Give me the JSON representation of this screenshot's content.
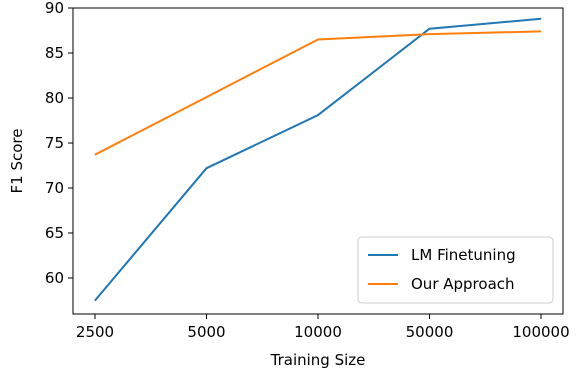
{
  "chart_data": {
    "type": "line",
    "categories": [
      "2500",
      "5000",
      "10000",
      "50000",
      "100000"
    ],
    "series": [
      {
        "name": "LM Finetuning",
        "values": [
          57.5,
          72.2,
          78.1,
          87.7,
          88.8
        ],
        "color": "#1f77b4"
      },
      {
        "name": "Our Approach",
        "values": [
          73.7,
          80.1,
          86.5,
          87.1,
          87.4
        ],
        "color": "#ff7f0e"
      }
    ],
    "xlabel": "Training Size",
    "ylabel": "F1 Score",
    "ylim": [
      56,
      90
    ],
    "yticks": [
      60,
      65,
      70,
      75,
      80,
      85,
      90
    ],
    "grid": false,
    "legend_position": "lower-right"
  }
}
